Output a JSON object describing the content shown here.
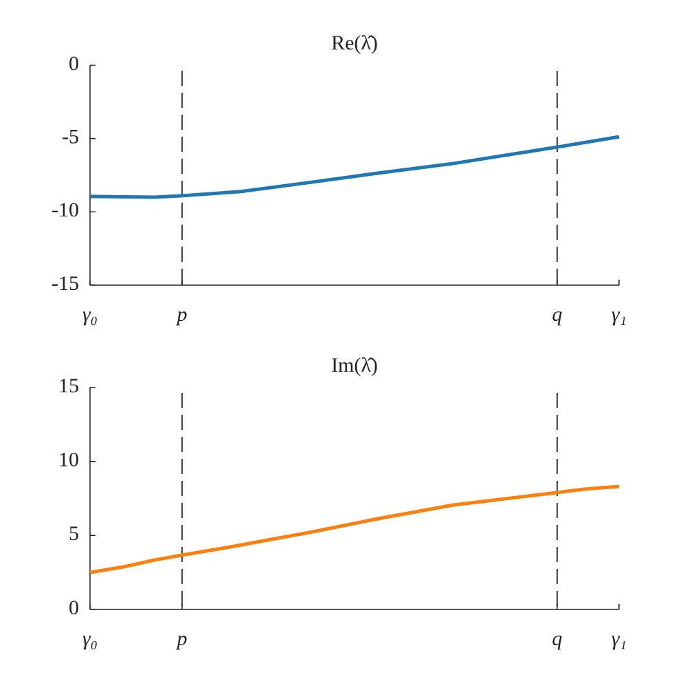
{
  "chart_data": [
    {
      "type": "line",
      "title": "Re(λ̂)",
      "x": [
        0,
        0.122,
        0.174,
        0.284,
        0.414,
        0.544,
        0.687,
        0.883,
        1
      ],
      "values": [
        -8.95,
        -9.0,
        -8.9,
        -8.62,
        -8.0,
        -7.36,
        -6.7,
        -5.58,
        -4.88
      ],
      "color": "#1f77b4",
      "xlim": [
        0,
        1
      ],
      "xticks": [
        {
          "value": 0,
          "label": "γ₀"
        },
        {
          "value": 0.174,
          "label": "p"
        },
        {
          "value": 0.883,
          "label": "q"
        },
        {
          "value": 1,
          "label": "γ₁"
        }
      ],
      "vlines": [
        0.174,
        0.883
      ],
      "ylim": [
        -15,
        0
      ],
      "yticks": [
        -15,
        -10,
        -5,
        0
      ]
    },
    {
      "type": "line",
      "title": "Im(λ̂)",
      "x": [
        0,
        0.064,
        0.122,
        0.174,
        0.258,
        0.414,
        0.544,
        0.687,
        0.883,
        0.934,
        1
      ],
      "values": [
        2.5,
        2.88,
        3.34,
        3.67,
        4.18,
        5.2,
        6.13,
        7.06,
        7.9,
        8.13,
        8.31
      ],
      "color": "#ff7f0e",
      "xlim": [
        0,
        1
      ],
      "xticks": [
        {
          "value": 0,
          "label": "γ₀"
        },
        {
          "value": 0.174,
          "label": "p"
        },
        {
          "value": 0.883,
          "label": "q"
        },
        {
          "value": 1,
          "label": "γ₁"
        }
      ],
      "vlines": [
        0.174,
        0.883
      ],
      "ylim": [
        0,
        15
      ],
      "yticks": [
        0,
        5,
        10,
        15
      ]
    }
  ]
}
